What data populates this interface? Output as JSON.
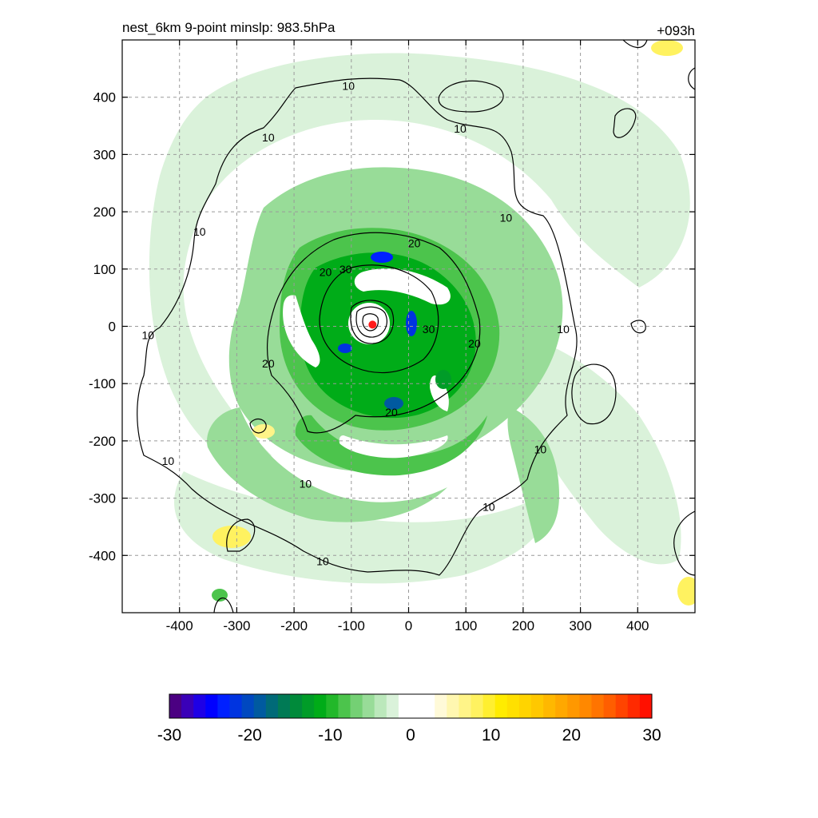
{
  "chart_data": {
    "type": "heatmap",
    "title_left": "nest_6km  9-point minslp: 983.5hPa",
    "title_right": "+093h",
    "xlabel": "",
    "ylabel": "",
    "xlim": [
      -500,
      500
    ],
    "ylim": [
      -500,
      500
    ],
    "x_ticks": [
      -400,
      -300,
      -200,
      -100,
      0,
      100,
      200,
      300,
      400
    ],
    "y_ticks": [
      400,
      300,
      200,
      100,
      0,
      -100,
      -200,
      -300,
      -400
    ],
    "grid": true,
    "grid_style": "dashed gray",
    "fill_field": {
      "description": "shaded field, negative values green-blue, positive values yellow-orange",
      "range": [
        -30,
        30
      ]
    },
    "contour_levels": [
      10,
      20,
      30
    ],
    "contour_labels": [
      {
        "label": "10",
        "x": -105,
        "y": 420
      },
      {
        "label": "10",
        "x": 90,
        "y": 345
      },
      {
        "label": "10",
        "x": -245,
        "y": 330
      },
      {
        "label": "10",
        "x": 170,
        "y": 190
      },
      {
        "label": "10",
        "x": -365,
        "y": 165
      },
      {
        "label": "10",
        "x": 270,
        "y": -5
      },
      {
        "label": "10",
        "x": -455,
        "y": -15
      },
      {
        "label": "10",
        "x": 230,
        "y": -215
      },
      {
        "label": "10",
        "x": -420,
        "y": -235
      },
      {
        "label": "10",
        "x": -180,
        "y": -275
      },
      {
        "label": "10",
        "x": 140,
        "y": -315
      },
      {
        "label": "10",
        "x": -150,
        "y": -410
      },
      {
        "label": "20",
        "x": 10,
        "y": 145
      },
      {
        "label": "20",
        "x": -145,
        "y": 95
      },
      {
        "label": "20",
        "x": 115,
        "y": -30
      },
      {
        "label": "20",
        "x": -245,
        "y": -65
      },
      {
        "label": "20",
        "x": -30,
        "y": -150
      },
      {
        "label": "30",
        "x": -110,
        "y": 100
      },
      {
        "label": "30",
        "x": 35,
        "y": -5
      }
    ],
    "storm_center": {
      "x": -63,
      "y": 3,
      "color": "#ff1a1a"
    },
    "colorbar": {
      "colors": [
        "#4b0082",
        "#3a00b8",
        "#1e00e6",
        "#0000ff",
        "#0020ff",
        "#0034e0",
        "#0048c0",
        "#005aa0",
        "#006a78",
        "#007a55",
        "#008a3a",
        "#009c28",
        "#00ac18",
        "#22b82a",
        "#4cc44c",
        "#74d074",
        "#98dc98",
        "#bbe8bb",
        "#daf2da",
        "#ffffff",
        "#ffffff",
        "#ffffff",
        "#fffad8",
        "#fff7b0",
        "#fff488",
        "#fff260",
        "#ffef30",
        "#ffec00",
        "#ffe000",
        "#ffd400",
        "#ffc800",
        "#ffb800",
        "#ffa800",
        "#ff9800",
        "#ff8800",
        "#ff7400",
        "#ff5e00",
        "#ff4400",
        "#ff2a00",
        "#ff1000"
      ],
      "tick_labels": [
        "-30",
        "-20",
        "-10",
        "0",
        "10",
        "20",
        "30"
      ],
      "tick_values": [
        -30,
        -20,
        -10,
        0,
        10,
        20,
        30
      ]
    }
  }
}
